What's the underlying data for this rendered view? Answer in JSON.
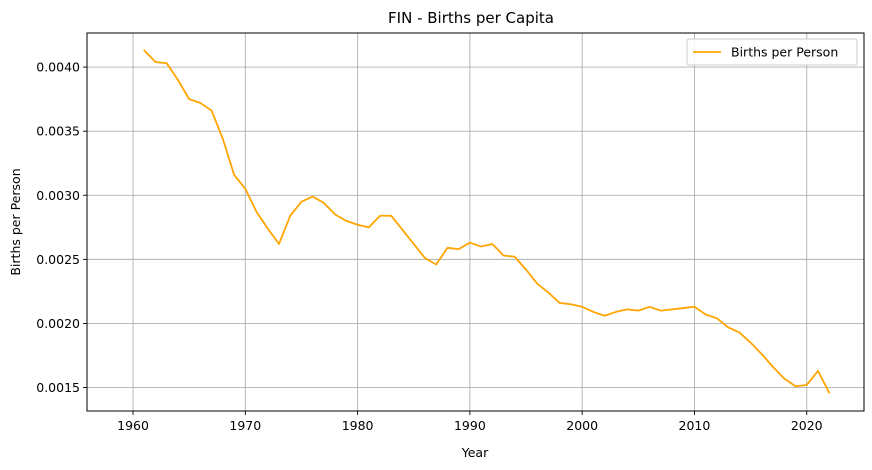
{
  "chart_data": {
    "type": "line",
    "title": "FIN - Births per Capita",
    "xlabel": "Year",
    "ylabel": "Births per Person",
    "xlim": [
      1955.9,
      2025.1
    ],
    "ylim": [
      0.001317,
      0.004266
    ],
    "xticks": [
      1960,
      1970,
      1980,
      1990,
      2000,
      2010,
      2020
    ],
    "yticks": [
      0.0015,
      0.002,
      0.0025,
      0.003,
      0.0035,
      0.004
    ],
    "ytick_labels": [
      "0.0015",
      "0.0020",
      "0.0025",
      "0.0030",
      "0.0035",
      "0.0040"
    ],
    "grid": true,
    "legend_position": "top-right",
    "series": [
      {
        "name": "Births per Person",
        "color": "#ffa500",
        "x": [
          1961,
          1962,
          1963,
          1964,
          1965,
          1966,
          1967,
          1968,
          1969,
          1970,
          1971,
          1972,
          1973,
          1974,
          1975,
          1976,
          1977,
          1978,
          1979,
          1980,
          1981,
          1982,
          1983,
          1984,
          1985,
          1986,
          1987,
          1988,
          1989,
          1990,
          1991,
          1992,
          1993,
          1994,
          1995,
          1996,
          1997,
          1998,
          1999,
          2000,
          2001,
          2002,
          2003,
          2004,
          2005,
          2006,
          2007,
          2008,
          2009,
          2010,
          2011,
          2012,
          2013,
          2014,
          2015,
          2016,
          2017,
          2018,
          2019,
          2020,
          2021,
          2022
        ],
        "values": [
          0.00413,
          0.00404,
          0.00403,
          0.0039,
          0.00375,
          0.00372,
          0.00366,
          0.00344,
          0.00316,
          0.00305,
          0.00287,
          0.00274,
          0.00262,
          0.00284,
          0.00295,
          0.00299,
          0.00294,
          0.00285,
          0.0028,
          0.00277,
          0.00275,
          0.00284,
          0.00284,
          0.00273,
          0.00262,
          0.00251,
          0.00246,
          0.00259,
          0.00258,
          0.00263,
          0.0026,
          0.00262,
          0.00253,
          0.00252,
          0.00242,
          0.00231,
          0.00224,
          0.00216,
          0.00215,
          0.00213,
          0.00209,
          0.00206,
          0.00209,
          0.00211,
          0.0021,
          0.00213,
          0.0021,
          0.00211,
          0.00212,
          0.00213,
          0.00207,
          0.00204,
          0.00197,
          0.00193,
          0.00185,
          0.00176,
          0.00166,
          0.00157,
          0.00151,
          0.00152,
          0.00163,
          0.00146
        ]
      }
    ]
  }
}
